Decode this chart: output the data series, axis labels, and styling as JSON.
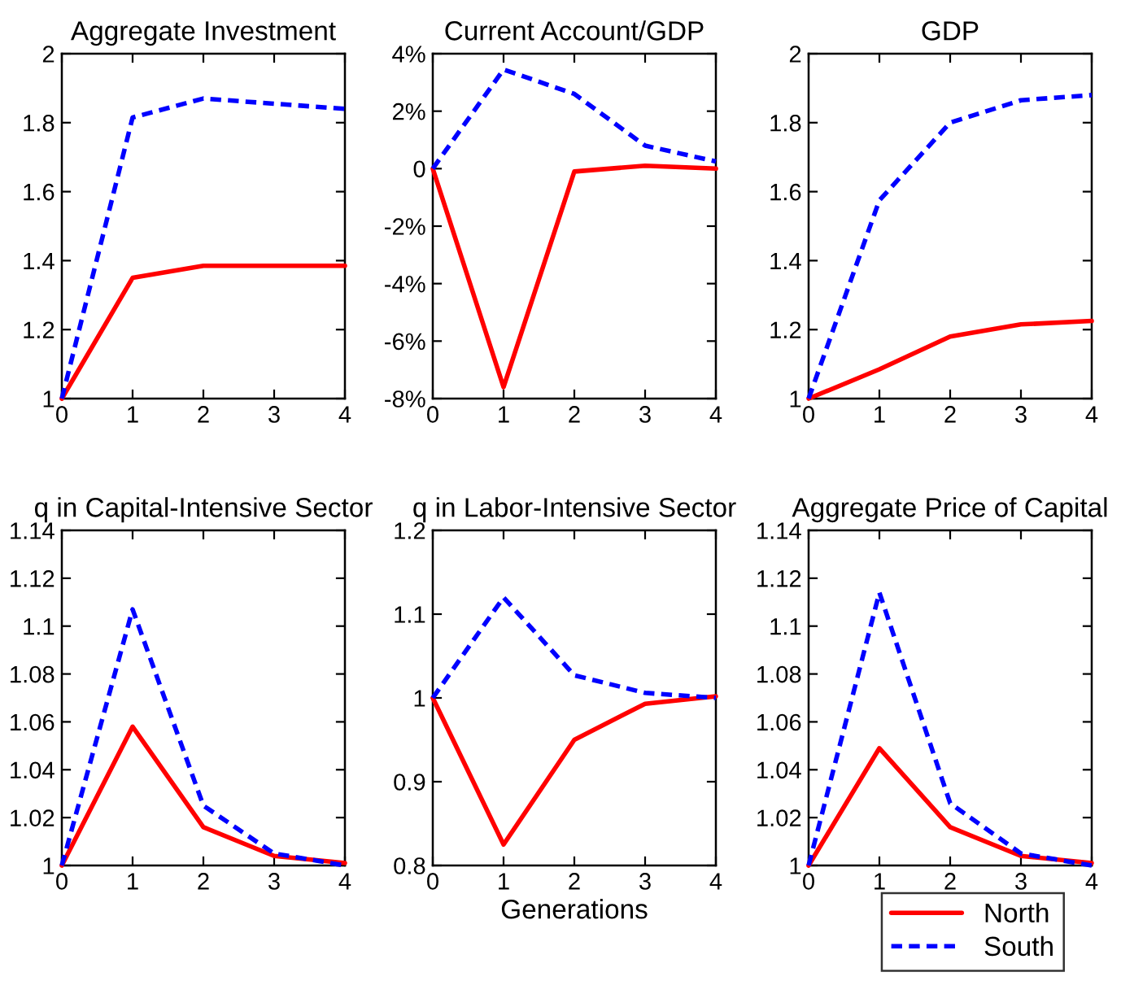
{
  "chart_data": [
    {
      "type": "line",
      "title": "Aggregate Investment",
      "x": [
        0,
        1,
        2,
        3,
        4
      ],
      "xlim": [
        0,
        4
      ],
      "xticks": [
        0,
        1,
        2,
        3,
        4
      ],
      "ylim": [
        1,
        2
      ],
      "yticks": [
        1,
        1.2,
        1.4,
        1.6,
        1.8,
        2
      ],
      "legend": "bottom right",
      "series": [
        {
          "name": "North",
          "color": "#ff0000",
          "line_style": "solid",
          "values": [
            1,
            1.35,
            1.385,
            1.385,
            1.385
          ]
        },
        {
          "name": "South",
          "color": "#0000ff",
          "line_style": "dashed",
          "values": [
            1,
            1.815,
            1.87,
            1.855,
            1.84
          ]
        }
      ]
    },
    {
      "type": "line",
      "title": "Current Account/GDP",
      "x": [
        0,
        1,
        2,
        3,
        4
      ],
      "xlim": [
        0,
        4
      ],
      "xticks": [
        0,
        1,
        2,
        3,
        4
      ],
      "ylim": [
        -8,
        4
      ],
      "yticks": [
        {
          "value": -8,
          "label": "-8%"
        },
        {
          "value": -6,
          "label": "-6%"
        },
        {
          "value": -4,
          "label": "-4%"
        },
        {
          "value": -2,
          "label": "-2%"
        },
        0,
        {
          "value": 2,
          "label": "2%"
        },
        {
          "value": 4,
          "label": "4%"
        }
      ],
      "series": [
        {
          "color": "#ff0000",
          "line_style": "solid",
          "values": [
            0,
            -7.6,
            -0.1,
            0.1,
            0
          ]
        },
        {
          "color": "#0000ff",
          "line_style": "dashed",
          "values": [
            0,
            3.45,
            2.6,
            0.8,
            0.25
          ]
        }
      ]
    },
    {
      "type": "line",
      "title": "GDP",
      "x": [
        0,
        1,
        2,
        3,
        4
      ],
      "xlim": [
        0,
        4
      ],
      "xticks": [
        0,
        1,
        2,
        3,
        4
      ],
      "ylim": [
        1,
        2
      ],
      "yticks": [
        1,
        1.2,
        1.4,
        1.6,
        1.8,
        2
      ],
      "series": [
        {
          "color": "#ff0000",
          "line_style": "solid",
          "values": [
            1,
            1.085,
            1.18,
            1.215,
            1.225
          ]
        },
        {
          "color": "#0000ff",
          "line_style": "dashed",
          "values": [
            1,
            1.575,
            1.8,
            1.865,
            1.88
          ]
        }
      ]
    },
    {
      "type": "line",
      "title": "q in Capital-Intensive Sector",
      "x": [
        0,
        1,
        2,
        3,
        4
      ],
      "xlim": [
        0,
        4
      ],
      "xticks": [
        0,
        1,
        2,
        3,
        4
      ],
      "ylim": [
        1,
        1.14
      ],
      "yticks": [
        1,
        1.02,
        1.04,
        1.06,
        1.08,
        1.1,
        1.12,
        1.14
      ],
      "series": [
        {
          "color": "#ff0000",
          "line_style": "solid",
          "values": [
            1,
            1.058,
            1.016,
            1.004,
            1.001
          ]
        },
        {
          "color": "#0000ff",
          "line_style": "dashed",
          "values": [
            1,
            1.107,
            1.025,
            1.005,
            1.0
          ]
        }
      ]
    },
    {
      "type": "line",
      "title": "q in Labor-Intensive Sector",
      "xlabel": "Generations",
      "x": [
        0,
        1,
        2,
        3,
        4
      ],
      "xlim": [
        0,
        4
      ],
      "xticks": [
        0,
        1,
        2,
        3,
        4
      ],
      "ylim": [
        0.8,
        1.2
      ],
      "yticks": [
        0.8,
        0.9,
        1,
        1.1,
        1.2
      ],
      "series": [
        {
          "color": "#ff0000",
          "line_style": "solid",
          "values": [
            1,
            0.825,
            0.95,
            0.993,
            1.002
          ]
        },
        {
          "color": "#0000ff",
          "line_style": "dashed",
          "values": [
            1,
            1.12,
            1.027,
            1.006,
            1.0
          ]
        }
      ]
    },
    {
      "type": "line",
      "title": "Aggregate Price of Capital",
      "x": [
        0,
        1,
        2,
        3,
        4
      ],
      "xlim": [
        0,
        4
      ],
      "xticks": [
        0,
        1,
        2,
        3,
        4
      ],
      "ylim": [
        1,
        1.14
      ],
      "yticks": [
        1,
        1.02,
        1.04,
        1.06,
        1.08,
        1.1,
        1.12,
        1.14
      ],
      "series": [
        {
          "color": "#ff0000",
          "line_style": "solid",
          "values": [
            1,
            1.049,
            1.016,
            1.004,
            1.001
          ]
        },
        {
          "color": "#0000ff",
          "line_style": "dashed",
          "values": [
            1,
            1.114,
            1.026,
            1.005,
            1.0
          ]
        }
      ]
    }
  ]
}
